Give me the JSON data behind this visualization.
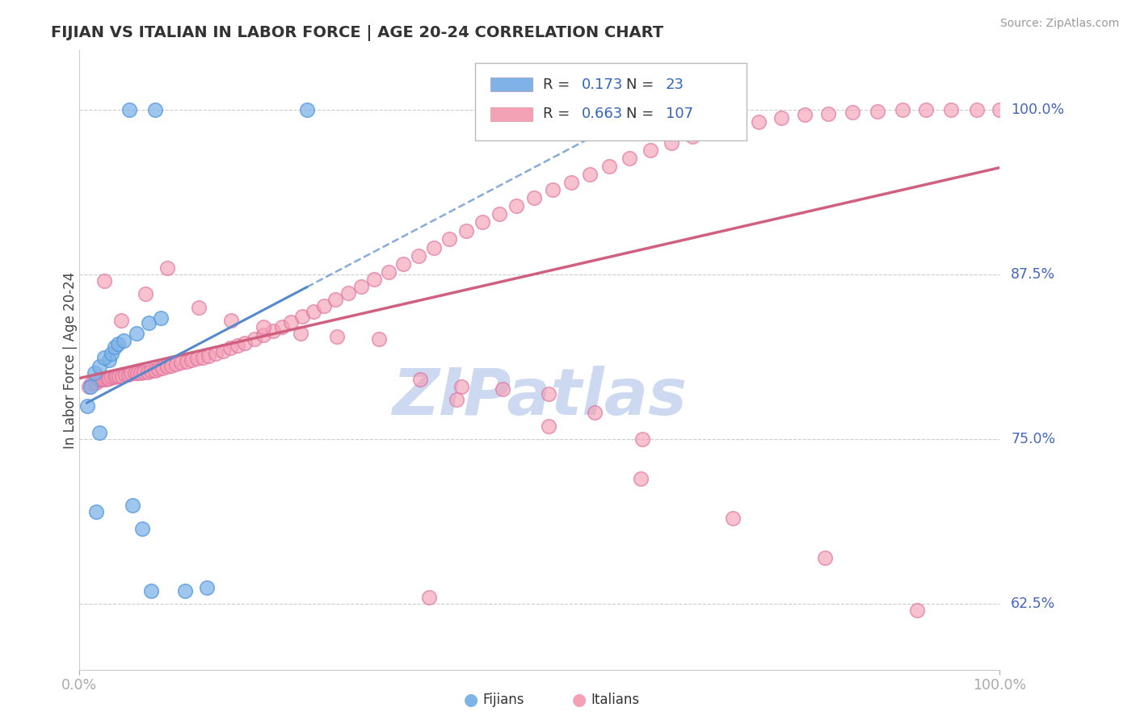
{
  "title": "FIJIAN VS ITALIAN IN LABOR FORCE | AGE 20-24 CORRELATION CHART",
  "source": "Source: ZipAtlas.com",
  "ylabel": "In Labor Force | Age 20-24",
  "xlim": [
    0.0,
    1.0
  ],
  "ylim": [
    0.575,
    1.045
  ],
  "yticks": [
    0.625,
    0.75,
    0.875,
    1.0
  ],
  "ytick_labels": [
    "62.5%",
    "75.0%",
    "87.5%",
    "100.0%"
  ],
  "xtick_labels": [
    "0.0%",
    "100.0%"
  ],
  "fijian_color": "#7fb3e8",
  "italian_color": "#f4a0b5",
  "fijian_edge": "#5599dd",
  "italian_edge": "#e070a0",
  "fijian_R": 0.173,
  "fijian_N": 23,
  "italian_R": 0.663,
  "italian_N": 107,
  "watermark_color": "#ccd9f0",
  "fijian_line_color": "#5588cc",
  "italian_line_color": "#d06080",
  "fijian_x": [
    0.054,
    0.082,
    0.247,
    0.018,
    0.022,
    0.008,
    0.012,
    0.016,
    0.022,
    0.032,
    0.027,
    0.035,
    0.038,
    0.042,
    0.048,
    0.062,
    0.075,
    0.088,
    0.058,
    0.068,
    0.078,
    0.115,
    0.138
  ],
  "fijian_y": [
    1.0,
    1.0,
    1.0,
    0.695,
    0.755,
    0.775,
    0.79,
    0.8,
    0.805,
    0.81,
    0.812,
    0.815,
    0.82,
    0.822,
    0.825,
    0.83,
    0.838,
    0.842,
    0.7,
    0.682,
    0.635,
    0.635,
    0.637
  ],
  "italian_x": [
    0.01,
    0.013,
    0.016,
    0.018,
    0.02,
    0.022,
    0.025,
    0.028,
    0.03,
    0.032,
    0.035,
    0.038,
    0.04,
    0.043,
    0.046,
    0.05,
    0.053,
    0.056,
    0.06,
    0.063,
    0.066,
    0.07,
    0.074,
    0.078,
    0.082,
    0.086,
    0.09,
    0.095,
    0.1,
    0.105,
    0.11,
    0.116,
    0.122,
    0.128,
    0.134,
    0.14,
    0.148,
    0.156,
    0.164,
    0.172,
    0.18,
    0.19,
    0.2,
    0.21,
    0.22,
    0.23,
    0.242,
    0.254,
    0.266,
    0.278,
    0.292,
    0.306,
    0.32,
    0.336,
    0.352,
    0.368,
    0.385,
    0.402,
    0.42,
    0.438,
    0.456,
    0.475,
    0.494,
    0.514,
    0.534,
    0.555,
    0.576,
    0.598,
    0.62,
    0.643,
    0.666,
    0.69,
    0.714,
    0.738,
    0.763,
    0.788,
    0.814,
    0.84,
    0.867,
    0.894,
    0.92,
    0.947,
    0.975,
    1.0,
    0.027,
    0.045,
    0.072,
    0.095,
    0.13,
    0.165,
    0.2,
    0.24,
    0.28,
    0.325,
    0.37,
    0.415,
    0.46,
    0.51,
    0.56,
    0.612,
    0.41,
    0.51,
    0.61,
    0.71,
    0.81,
    0.91,
    0.38
  ],
  "italian_y": [
    0.79,
    0.792,
    0.793,
    0.793,
    0.795,
    0.795,
    0.795,
    0.795,
    0.796,
    0.796,
    0.797,
    0.797,
    0.798,
    0.798,
    0.798,
    0.799,
    0.799,
    0.8,
    0.8,
    0.8,
    0.8,
    0.801,
    0.801,
    0.802,
    0.802,
    0.803,
    0.804,
    0.805,
    0.806,
    0.807,
    0.808,
    0.809,
    0.81,
    0.811,
    0.812,
    0.813,
    0.815,
    0.817,
    0.819,
    0.821,
    0.823,
    0.826,
    0.829,
    0.832,
    0.835,
    0.839,
    0.843,
    0.847,
    0.851,
    0.856,
    0.861,
    0.866,
    0.871,
    0.877,
    0.883,
    0.889,
    0.895,
    0.902,
    0.908,
    0.915,
    0.921,
    0.927,
    0.933,
    0.939,
    0.945,
    0.951,
    0.957,
    0.963,
    0.969,
    0.975,
    0.98,
    0.985,
    0.988,
    0.991,
    0.994,
    0.996,
    0.997,
    0.998,
    0.999,
    1.0,
    1.0,
    1.0,
    1.0,
    1.0,
    0.87,
    0.84,
    0.86,
    0.88,
    0.85,
    0.84,
    0.835,
    0.83,
    0.828,
    0.826,
    0.795,
    0.79,
    0.788,
    0.784,
    0.77,
    0.75,
    0.78,
    0.76,
    0.72,
    0.69,
    0.66,
    0.62,
    0.63
  ]
}
